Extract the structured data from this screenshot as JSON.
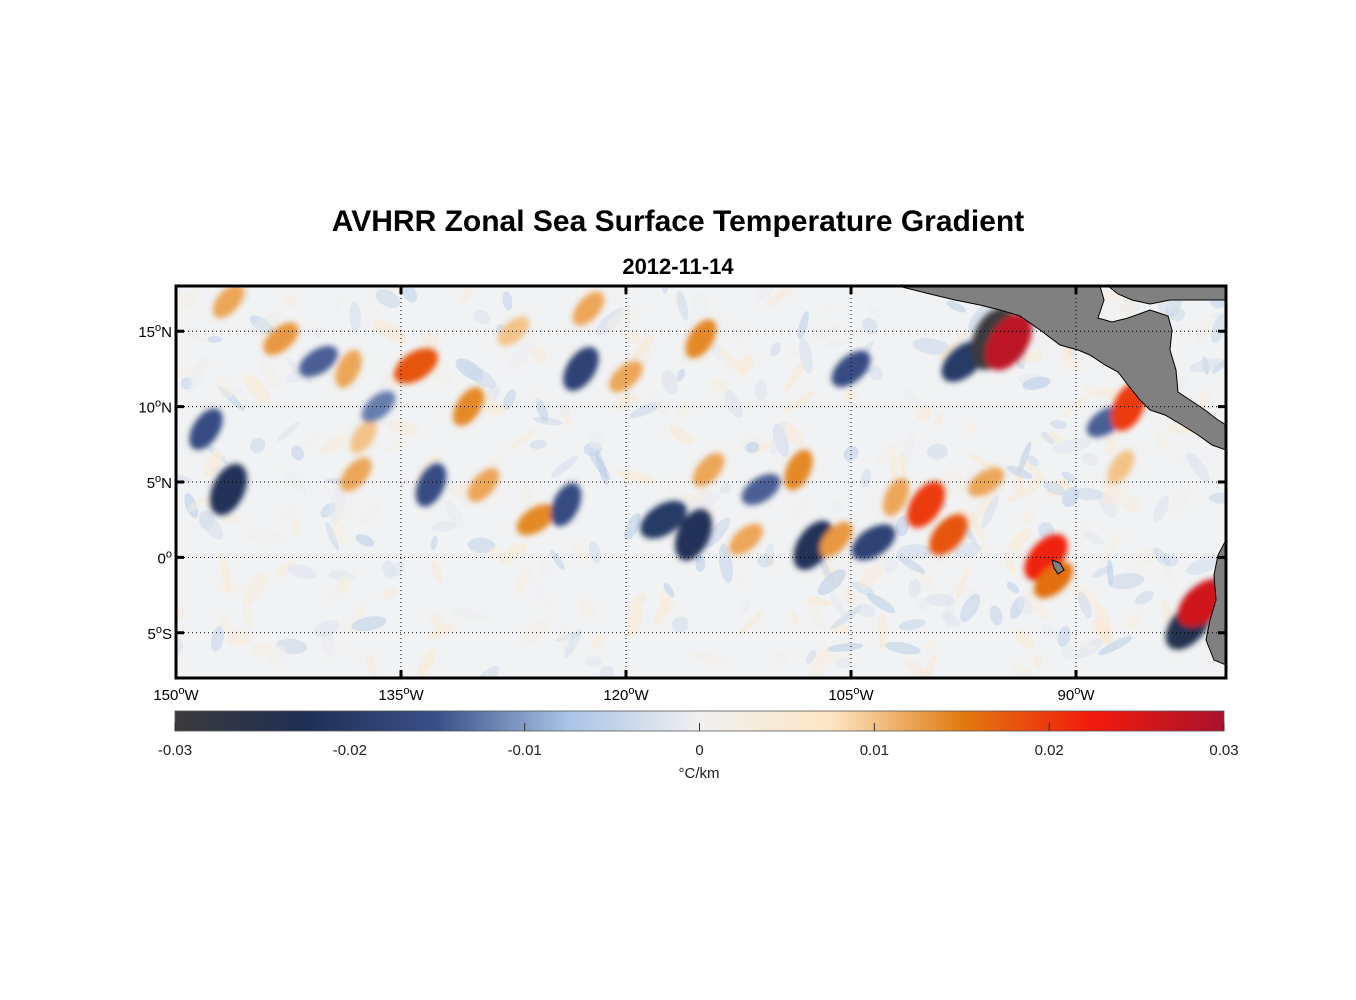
{
  "title": "AVHRR Zonal Sea Surface Temperature Gradient",
  "subtitle": "2012-11-14",
  "map": {
    "lon_range": [
      -150,
      -80
    ],
    "lat_range": [
      -8,
      18
    ],
    "grid": "dotted",
    "x_ticks": [
      {
        "value": -150,
        "label": "150",
        "sup": "o",
        "hemi": "W"
      },
      {
        "value": -135,
        "label": "135",
        "sup": "o",
        "hemi": "W"
      },
      {
        "value": -120,
        "label": "120",
        "sup": "o",
        "hemi": "W"
      },
      {
        "value": -105,
        "label": "105",
        "sup": "o",
        "hemi": "W"
      },
      {
        "value": -90,
        "label": "90",
        "sup": "o",
        "hemi": "W"
      }
    ],
    "y_ticks": [
      {
        "value": 15,
        "label": "15",
        "sup": "o",
        "hemi": "N"
      },
      {
        "value": 10,
        "label": "10",
        "sup": "o",
        "hemi": "N"
      },
      {
        "value": 5,
        "label": "5",
        "sup": "o",
        "hemi": "N"
      },
      {
        "value": 0,
        "label": "0",
        "sup": "o",
        "hemi": ""
      },
      {
        "value": -5,
        "label": "5",
        "sup": "o",
        "hemi": "S"
      }
    ],
    "land_color": "#808080"
  },
  "colorbar": {
    "min": -0.03,
    "max": 0.03,
    "ticks": [
      "-0.03",
      "-0.02",
      "-0.01",
      "0",
      "0.01",
      "0.02",
      "0.03"
    ],
    "tick_values": [
      -0.03,
      -0.02,
      -0.01,
      0,
      0.01,
      0.02,
      0.03
    ],
    "unit_label": "°C/km",
    "colors": [
      "#3a3a3c",
      "#1f2f55",
      "#3a5089",
      "#a9c4e6",
      "#f0f0f0",
      "#fde6c4",
      "#e07b10",
      "#f21a0c",
      "#a8122e"
    ]
  },
  "features": [
    {
      "lon": -146.5,
      "lat": 4.5,
      "value": -0.022
    },
    {
      "lon": -148.0,
      "lat": 8.5,
      "value": -0.016
    },
    {
      "lon": -146.5,
      "lat": 17.0,
      "value": 0.012
    },
    {
      "lon": -143.0,
      "lat": 14.5,
      "value": 0.013
    },
    {
      "lon": -140.5,
      "lat": 13.0,
      "value": -0.014
    },
    {
      "lon": -138.5,
      "lat": 12.5,
      "value": 0.012
    },
    {
      "lon": -137.5,
      "lat": 8.0,
      "value": 0.01
    },
    {
      "lon": -138.0,
      "lat": 5.5,
      "value": 0.012
    },
    {
      "lon": -136.5,
      "lat": 10.0,
      "value": -0.012
    },
    {
      "lon": -134.0,
      "lat": 12.7,
      "value": 0.018
    },
    {
      "lon": -133.0,
      "lat": 4.8,
      "value": -0.016
    },
    {
      "lon": -130.5,
      "lat": 10.0,
      "value": 0.014
    },
    {
      "lon": -129.5,
      "lat": 4.8,
      "value": 0.012
    },
    {
      "lon": -127.5,
      "lat": 15.0,
      "value": 0.01
    },
    {
      "lon": -126.0,
      "lat": 2.5,
      "value": 0.014
    },
    {
      "lon": -124.0,
      "lat": 3.5,
      "value": -0.016
    },
    {
      "lon": -123.0,
      "lat": 12.5,
      "value": -0.018
    },
    {
      "lon": -122.5,
      "lat": 16.5,
      "value": 0.012
    },
    {
      "lon": -120.0,
      "lat": 12.0,
      "value": 0.012
    },
    {
      "lon": -117.5,
      "lat": 2.5,
      "value": -0.02
    },
    {
      "lon": -115.5,
      "lat": 1.5,
      "value": -0.022
    },
    {
      "lon": -115.0,
      "lat": 14.5,
      "value": 0.014
    },
    {
      "lon": -114.5,
      "lat": 5.8,
      "value": 0.012
    },
    {
      "lon": -112.0,
      "lat": 1.2,
      "value": 0.012
    },
    {
      "lon": -111.0,
      "lat": 4.5,
      "value": -0.014
    },
    {
      "lon": -108.5,
      "lat": 5.8,
      "value": 0.014
    },
    {
      "lon": -107.5,
      "lat": 0.8,
      "value": -0.022
    },
    {
      "lon": -106.0,
      "lat": 1.2,
      "value": 0.013
    },
    {
      "lon": -105.0,
      "lat": 12.5,
      "value": -0.016
    },
    {
      "lon": -103.5,
      "lat": 1.0,
      "value": -0.018
    },
    {
      "lon": -102.0,
      "lat": 4.0,
      "value": 0.012
    },
    {
      "lon": -100.0,
      "lat": 3.5,
      "value": 0.02
    },
    {
      "lon": -98.5,
      "lat": 1.5,
      "value": 0.018
    },
    {
      "lon": -97.5,
      "lat": 13.0,
      "value": -0.02
    },
    {
      "lon": -96.0,
      "lat": 5.0,
      "value": 0.012
    },
    {
      "lon": -95.5,
      "lat": 14.5,
      "value": -0.03
    },
    {
      "lon": -94.5,
      "lat": 14.3,
      "value": 0.028
    },
    {
      "lon": -92.0,
      "lat": 0.0,
      "value": 0.022
    },
    {
      "lon": -91.5,
      "lat": -1.5,
      "value": 0.016
    },
    {
      "lon": -88.0,
      "lat": 9.0,
      "value": -0.014
    },
    {
      "lon": -86.5,
      "lat": 10.0,
      "value": 0.02
    },
    {
      "lon": -87.0,
      "lat": 6.0,
      "value": 0.01
    },
    {
      "lon": -82.5,
      "lat": -4.5,
      "value": -0.024
    },
    {
      "lon": -81.5,
      "lat": -3.0,
      "value": 0.026
    }
  ]
}
